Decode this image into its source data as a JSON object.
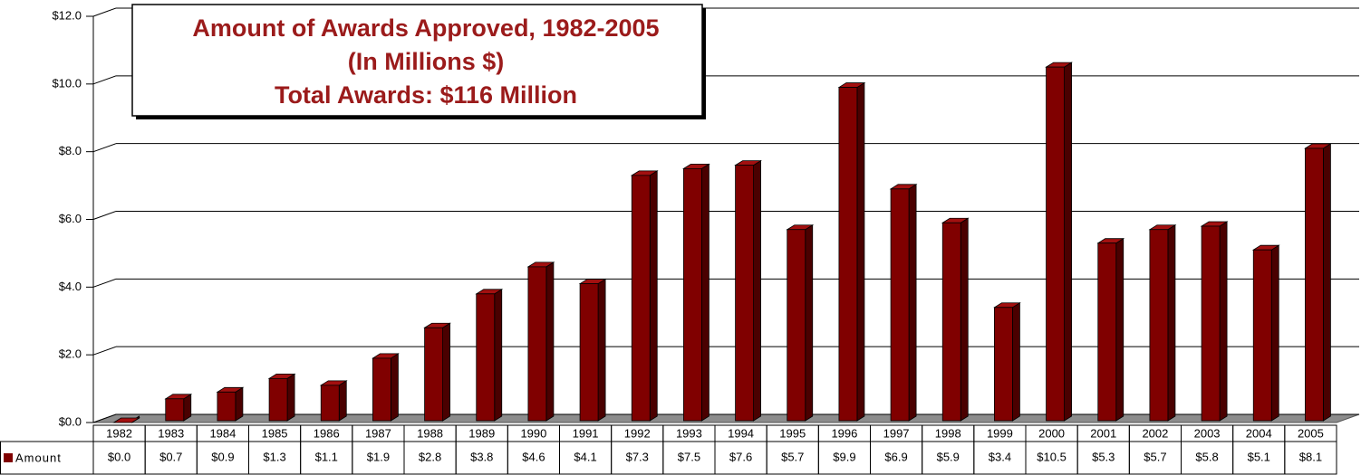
{
  "chart_data": {
    "type": "bar",
    "title": "Amount of Awards Approved,  1982-2005",
    "subtitle": "(In Millions $)",
    "annotation": "Total Awards: $116 Million",
    "categories": [
      "1982",
      "1983",
      "1984",
      "1985",
      "1986",
      "1987",
      "1988",
      "1989",
      "1990",
      "1991",
      "1992",
      "1993",
      "1994",
      "1995",
      "1996",
      "1997",
      "1998",
      "1999",
      "2000",
      "2001",
      "2002",
      "2003",
      "2004",
      "2005"
    ],
    "series": [
      {
        "name": "Amount",
        "color": "#800000",
        "values": [
          0,
          0.7,
          0.9,
          1.3,
          1.1,
          1.9,
          2.8,
          3.8,
          4.6,
          4.1,
          7.3,
          7.5,
          7.6,
          5.7,
          9.9,
          6.9,
          5.9,
          3.4,
          10.5,
          5.3,
          5.7,
          5.8,
          5.1,
          8.1
        ],
        "value_labels": [
          "$0.0",
          "$0.7",
          "$0.9",
          "$1.3",
          "$1.1",
          "$1.9",
          "$2.8",
          "$3.8",
          "$4.6",
          "$4.1",
          "$7.3",
          "$7.5",
          "$7.6",
          "$5.7",
          "$9.9",
          "$6.9",
          "$5.9",
          "$3.4",
          "$10.5",
          "$5.3",
          "$5.7",
          "$5.8",
          "$5.1",
          "$8.1"
        ]
      }
    ],
    "ylim": [
      0,
      12
    ],
    "yticks": [
      {
        "value": 0,
        "label": "$0.0"
      },
      {
        "value": 2,
        "label": "$2.0"
      },
      {
        "value": 4,
        "label": "$4.0"
      },
      {
        "value": 6,
        "label": "$6.0"
      },
      {
        "value": 8,
        "label": "$8.0"
      },
      {
        "value": 10,
        "label": "$10.0"
      },
      {
        "value": 12,
        "label": "$12.0"
      }
    ],
    "grid": true
  }
}
